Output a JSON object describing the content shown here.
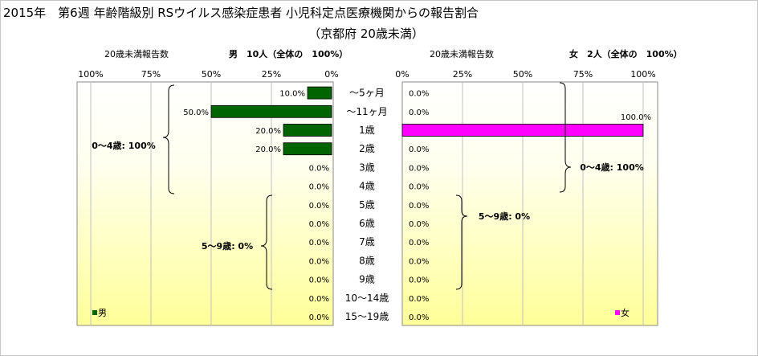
{
  "title_line1": "2015年　第6週 年齢階級別 RSウイルス感染症患者 小児科定点医療機関からの報告割合",
  "title_line2": "（京都府 20歳未満）",
  "left_panel": {
    "subtitle": "20歳未満報告数",
    "total_label": "男　10人（全体の　100%）",
    "legend": "男",
    "bracket_labels": [
      "0～4歳: 100%",
      "5～9歳: 0%"
    ]
  },
  "right_panel": {
    "subtitle": "20歳未満報告数",
    "total_label": "女　2人（全体の　100%）",
    "legend": "女",
    "bracket_labels": [
      "0～4歳: 100%",
      "5～9歳: 0%"
    ]
  },
  "colors": {
    "male": "#006400",
    "female": "#ff00ff",
    "panel_top": "#ffffff",
    "panel_bottom": "#ffff99"
  },
  "chart_data": [
    {
      "type": "bar",
      "orientation": "horizontal",
      "direction": "right-to-left",
      "series": [
        {
          "name": "男",
          "values": [
            10,
            50,
            20,
            20,
            0,
            0,
            0,
            0,
            0,
            0,
            0,
            0,
            0
          ]
        }
      ],
      "categories": [
        "～5ヶ月",
        "～11ヶ月",
        "1歳",
        "2歳",
        "3歳",
        "4歳",
        "5歳",
        "6歳",
        "7歳",
        "8歳",
        "9歳",
        "10～14歳",
        "15～19歳"
      ],
      "data_labels": [
        "10.0%",
        "50.0%",
        "20.0%",
        "20.0%",
        "0.0%",
        "0.0%",
        "0.0%",
        "0.0%",
        "0.0%",
        "0.0%",
        "0.0%",
        "0.0%",
        "0.0%"
      ],
      "xticks": [
        "100%",
        "75%",
        "50%",
        "25%",
        "0%"
      ],
      "xlim": [
        0,
        100
      ]
    },
    {
      "type": "bar",
      "orientation": "horizontal",
      "direction": "left-to-right",
      "series": [
        {
          "name": "女",
          "values": [
            0,
            0,
            100,
            0,
            0,
            0,
            0,
            0,
            0,
            0,
            0,
            0,
            0
          ]
        }
      ],
      "categories": [
        "～5ヶ月",
        "～11ヶ月",
        "1歳",
        "2歳",
        "3歳",
        "4歳",
        "5歳",
        "6歳",
        "7歳",
        "8歳",
        "9歳",
        "10～14歳",
        "15～19歳"
      ],
      "data_labels": [
        "0.0%",
        "0.0%",
        "100.0%",
        "0.0%",
        "0.0%",
        "0.0%",
        "0.0%",
        "0.0%",
        "0.0%",
        "0.0%",
        "0.0%",
        "0.0%",
        "0.0%"
      ],
      "xticks": [
        "0%",
        "25%",
        "50%",
        "75%",
        "100%"
      ],
      "xlim": [
        0,
        100
      ]
    }
  ]
}
